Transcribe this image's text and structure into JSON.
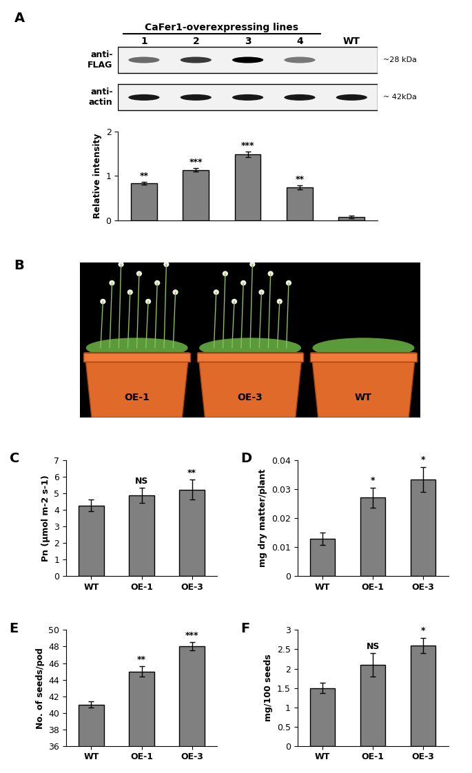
{
  "blot": {
    "panel": "A",
    "header": "CaFer1-overexpressing lines",
    "lanes": [
      "1",
      "2",
      "3",
      "4",
      "WT"
    ],
    "rows": [
      {
        "label": "anti-\nFLAG",
        "size": "~28 kDa"
      },
      {
        "label": "anti-\nactin",
        "size": "~ 42kDa"
      }
    ]
  },
  "photo": {
    "panel": "B",
    "labels": [
      "OE-1",
      "OE-3",
      "WT"
    ]
  },
  "chart_data": [
    {
      "type": "bar",
      "panel": null,
      "ylabel": "Relative intensity",
      "categories": [
        null,
        null,
        null,
        null,
        null
      ],
      "values": [
        0.83,
        1.13,
        1.48,
        0.74,
        0.07
      ],
      "errors": [
        0.03,
        0.04,
        0.06,
        0.04,
        0.03
      ],
      "annotations": [
        "**",
        "***",
        "***",
        "**",
        null
      ],
      "ylim": [
        0,
        2
      ],
      "yticks": [
        0,
        1,
        2
      ],
      "color": "#808080",
      "tick_labels": "y"
    },
    {
      "type": "bar",
      "panel": "C",
      "ylabel": "Pn (µmol m-2 s-1)",
      "categories": [
        "WT",
        "OE-1",
        "OE-3"
      ],
      "values": [
        4.25,
        4.85,
        5.2
      ],
      "errors": [
        0.35,
        0.45,
        0.6
      ],
      "annotations": [
        null,
        "NS",
        "**"
      ],
      "ylim": [
        0,
        7
      ],
      "yticks": [
        0,
        1,
        2,
        3,
        4,
        5,
        6,
        7
      ],
      "color": "#808080"
    },
    {
      "type": "bar",
      "panel": "D",
      "ylabel": "mg dry matter/plant",
      "categories": [
        "WT",
        "OE-1",
        "OE-3"
      ],
      "values": [
        0.0128,
        0.027,
        0.0333
      ],
      "errors": [
        0.0022,
        0.0035,
        0.0043
      ],
      "annotations": [
        null,
        "*",
        "*"
      ],
      "ylim": [
        0,
        0.04
      ],
      "yticks": [
        0,
        0.01,
        0.02,
        0.03,
        0.04
      ],
      "color": "#808080"
    },
    {
      "type": "bar",
      "panel": "E",
      "ylabel": "No. of seeds/pod",
      "categories": [
        "WT",
        "OE-1",
        "OE-3"
      ],
      "values": [
        41,
        45,
        48
      ],
      "errors": [
        0.35,
        0.6,
        0.5
      ],
      "annotations": [
        null,
        "**",
        "***"
      ],
      "ylim": [
        36,
        50
      ],
      "yticks": [
        36,
        38,
        40,
        42,
        44,
        46,
        48,
        50
      ],
      "color": "#808080"
    },
    {
      "type": "bar",
      "panel": "F",
      "ylabel": "mg/100 seeds",
      "categories": [
        "WT",
        "OE-1",
        "OE-3"
      ],
      "values": [
        1.5,
        2.1,
        2.6
      ],
      "errors": [
        0.13,
        0.3,
        0.2
      ],
      "annotations": [
        null,
        "NS",
        "*"
      ],
      "ylim": [
        0,
        3
      ],
      "yticks": [
        0,
        0.5,
        1,
        1.5,
        2,
        2.5,
        3
      ],
      "color": "#808080"
    }
  ]
}
